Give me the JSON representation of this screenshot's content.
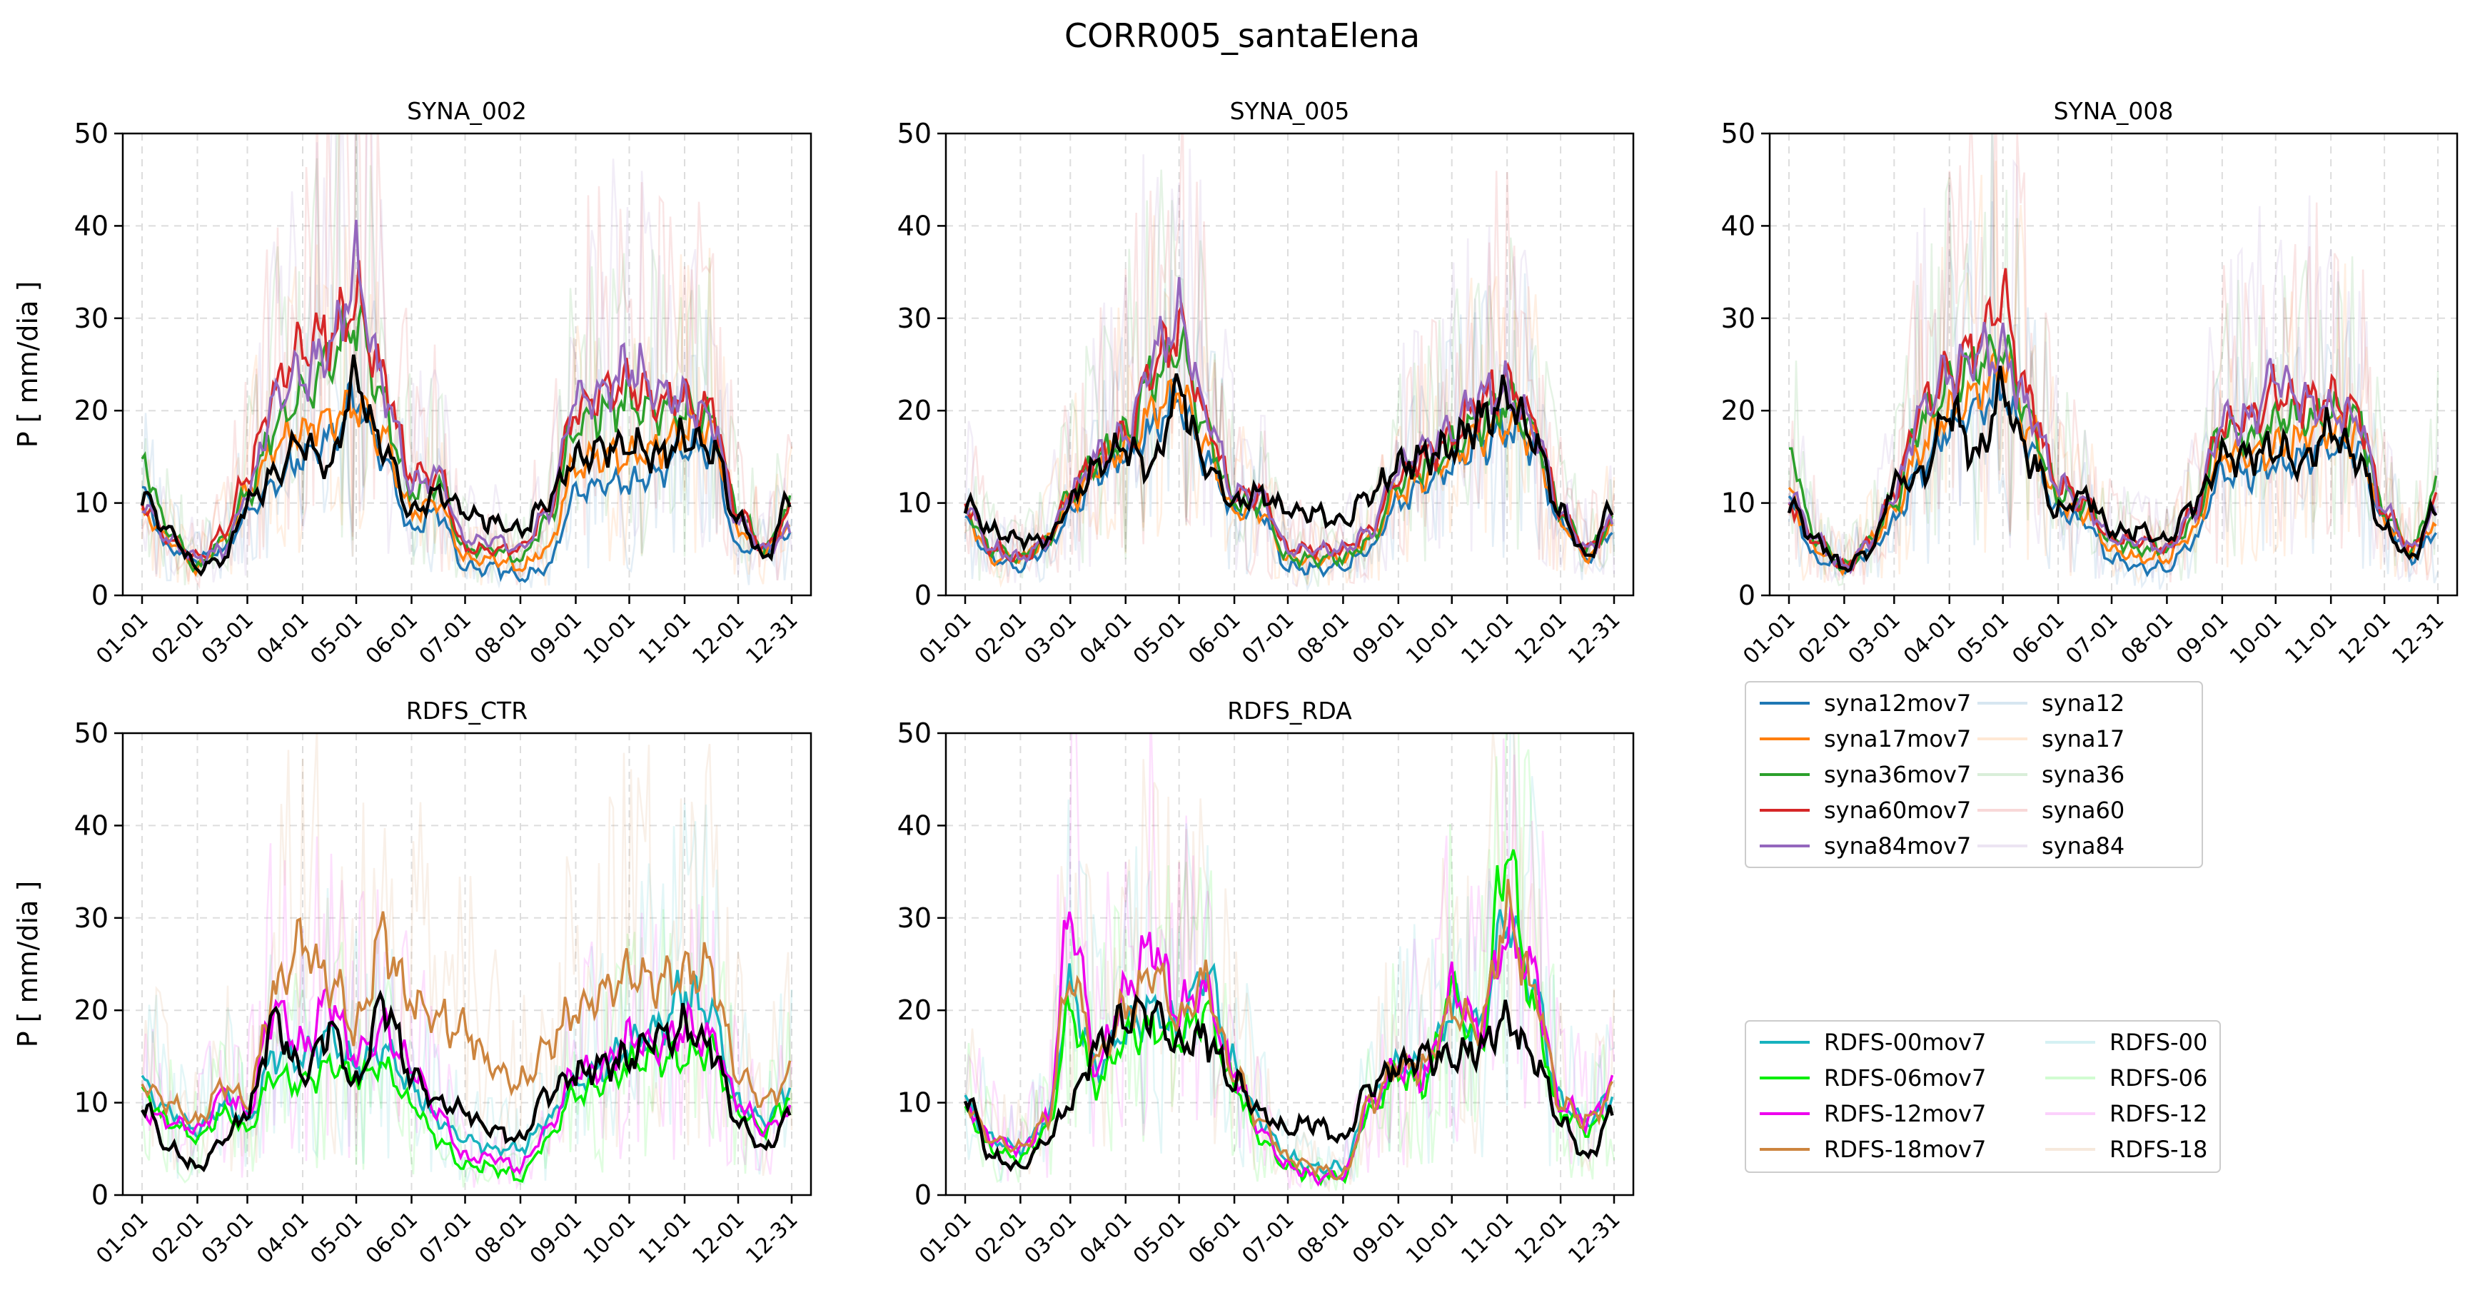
{
  "figure_title": "CORR005_santaElena",
  "colors": {
    "syna12mov7": "#1f77b4",
    "syna17mov7": "#ff7f0e",
    "syna36mov7": "#2ca02c",
    "syna60mov7": "#d62728",
    "syna84mov7": "#9467bd",
    "RDFS-00mov7": "#17b2be",
    "RDFS-06mov7": "#00ee00",
    "RDFS-12mov7": "#ee00ee",
    "RDFS-18mov7": "#cd853f",
    "observed": "#000000"
  },
  "legend_syna": {
    "left": [
      "syna12mov7",
      "syna17mov7",
      "syna36mov7",
      "syna60mov7",
      "syna84mov7"
    ],
    "right": [
      "syna12",
      "syna17",
      "syna36",
      "syna60",
      "syna84"
    ]
  },
  "legend_rdfs": {
    "left": [
      "RDFS-00mov7",
      "RDFS-06mov7",
      "RDFS-12mov7",
      "RDFS-18mov7"
    ],
    "right": [
      "RDFS-00",
      "RDFS-06",
      "RDFS-12",
      "RDFS-18"
    ]
  },
  "chart_data": [
    {
      "type": "line",
      "title": "SYNA_002",
      "ylabel": "P [ mm/dia ]",
      "ylim": [
        0,
        50
      ],
      "yticks": [
        "0",
        "10",
        "20",
        "30",
        "40",
        "50"
      ],
      "xticks": [
        "01-01",
        "02-01",
        "03-01",
        "04-01",
        "05-01",
        "06-01",
        "07-01",
        "08-01",
        "09-01",
        "10-01",
        "11-01",
        "12-01",
        "12-31"
      ],
      "grid": true,
      "x": [
        "01-01",
        "01-16",
        "02-01",
        "02-16",
        "03-01",
        "03-16",
        "04-01",
        "04-16",
        "05-01",
        "05-16",
        "06-01",
        "06-16",
        "07-01",
        "07-16",
        "08-01",
        "08-16",
        "09-01",
        "09-16",
        "10-01",
        "10-16",
        "11-01",
        "11-16",
        "12-01",
        "12-16",
        "12-31"
      ],
      "series": [
        {
          "name": "syna12mov7",
          "values": [
            11,
            5,
            4,
            5,
            9,
            12,
            15,
            17,
            21,
            15,
            7,
            9,
            3,
            3,
            2,
            3,
            11,
            12,
            12,
            13,
            16,
            16,
            5,
            5,
            7
          ]
        },
        {
          "name": "syna17mov7",
          "values": [
            9,
            6,
            3,
            6,
            11,
            16,
            18,
            19,
            21,
            17,
            9,
            10,
            4,
            4,
            3,
            5,
            14,
            15,
            15,
            16,
            18,
            18,
            7,
            5,
            8
          ]
        },
        {
          "name": "syna36mov7",
          "values": [
            15,
            7,
            3,
            6,
            11,
            18,
            22,
            25,
            30,
            21,
            11,
            12,
            5,
            5,
            4,
            8,
            18,
            20,
            21,
            20,
            20,
            19,
            9,
            5,
            10
          ]
        },
        {
          "name": "syna60mov7",
          "values": [
            10,
            6,
            4,
            7,
            13,
            22,
            27,
            28,
            32,
            24,
            13,
            13,
            5,
            5,
            5,
            9,
            20,
            22,
            23,
            21,
            21,
            20,
            9,
            5,
            9
          ]
        },
        {
          "name": "syna84mov7",
          "values": [
            10,
            6,
            4,
            5,
            11,
            21,
            24,
            27,
            35,
            23,
            12,
            13,
            6,
            6,
            5,
            9,
            21,
            22,
            25,
            22,
            21,
            19,
            8,
            5,
            7
          ]
        },
        {
          "name": "observed",
          "values": [
            11,
            7,
            3,
            4,
            10,
            13,
            17,
            14,
            23,
            16,
            9,
            11,
            9,
            8,
            7,
            10,
            15,
            16,
            16,
            15,
            17,
            16,
            8,
            4,
            11
          ]
        }
      ]
    },
    {
      "type": "line",
      "title": "SYNA_005",
      "ylabel": "",
      "ylim": [
        0,
        50
      ],
      "yticks": [
        "0",
        "10",
        "20",
        "30",
        "40",
        "50"
      ],
      "xticks": [
        "01-01",
        "02-01",
        "03-01",
        "04-01",
        "05-01",
        "06-01",
        "07-01",
        "08-01",
        "09-01",
        "10-01",
        "11-01",
        "12-01",
        "12-31"
      ],
      "grid": true,
      "x": [
        "01-01",
        "01-16",
        "02-01",
        "02-16",
        "03-01",
        "03-16",
        "04-01",
        "04-16",
        "05-01",
        "05-16",
        "06-01",
        "06-16",
        "07-01",
        "07-16",
        "08-01",
        "08-16",
        "09-01",
        "09-16",
        "10-01",
        "10-16",
        "11-01",
        "11-16",
        "12-01",
        "12-16",
        "12-31"
      ],
      "series": [
        {
          "name": "syna12mov7",
          "values": [
            8,
            4,
            3,
            5,
            9,
            13,
            15,
            18,
            21,
            15,
            9,
            9,
            3,
            3,
            3,
            5,
            10,
            12,
            14,
            16,
            18,
            16,
            8,
            4,
            7
          ]
        },
        {
          "name": "syna17mov7",
          "values": [
            9,
            4,
            4,
            6,
            10,
            14,
            16,
            20,
            22,
            16,
            9,
            9,
            4,
            4,
            4,
            6,
            11,
            13,
            15,
            17,
            19,
            17,
            8,
            4,
            8
          ]
        },
        {
          "name": "syna36mov7",
          "values": [
            9,
            5,
            4,
            6,
            11,
            15,
            17,
            24,
            27,
            18,
            10,
            10,
            4,
            4,
            4,
            6,
            12,
            14,
            16,
            19,
            21,
            18,
            9,
            5,
            8
          ]
        },
        {
          "name": "syna60mov7",
          "values": [
            10,
            5,
            4,
            6,
            11,
            15,
            17,
            25,
            29,
            19,
            11,
            11,
            5,
            5,
            5,
            7,
            13,
            15,
            17,
            21,
            23,
            19,
            9,
            5,
            8
          ]
        },
        {
          "name": "syna84mov7",
          "values": [
            10,
            5,
            4,
            6,
            11,
            15,
            17,
            26,
            30,
            20,
            11,
            11,
            5,
            5,
            5,
            7,
            14,
            16,
            18,
            22,
            22,
            18,
            9,
            5,
            8
          ]
        },
        {
          "name": "observed",
          "values": [
            10,
            7,
            6,
            6,
            10,
            14,
            16,
            14,
            22,
            14,
            10,
            11,
            9,
            9,
            8,
            11,
            14,
            15,
            16,
            19,
            21,
            17,
            9,
            4,
            10
          ]
        }
      ]
    },
    {
      "type": "line",
      "title": "SYNA_008",
      "ylabel": "",
      "ylim": [
        0,
        50
      ],
      "yticks": [
        "0",
        "10",
        "20",
        "30",
        "40",
        "50"
      ],
      "xticks": [
        "01-01",
        "02-01",
        "03-01",
        "04-01",
        "05-01",
        "06-01",
        "07-01",
        "08-01",
        "09-01",
        "10-01",
        "11-01",
        "12-01",
        "12-31"
      ],
      "grid": true,
      "x": [
        "01-01",
        "01-16",
        "02-01",
        "02-16",
        "03-01",
        "03-16",
        "04-01",
        "04-16",
        "05-01",
        "05-16",
        "06-01",
        "06-16",
        "07-01",
        "07-16",
        "08-01",
        "08-16",
        "09-01",
        "09-16",
        "10-01",
        "10-16",
        "11-01",
        "11-16",
        "12-01",
        "12-16",
        "12-31"
      ],
      "series": [
        {
          "name": "syna12mov7",
          "values": [
            10,
            4,
            3,
            5,
            8,
            14,
            18,
            20,
            22,
            16,
            9,
            8,
            4,
            3,
            3,
            6,
            13,
            13,
            14,
            15,
            16,
            16,
            8,
            4,
            7
          ]
        },
        {
          "name": "syna17mov7",
          "values": [
            11,
            5,
            3,
            6,
            9,
            16,
            20,
            22,
            25,
            18,
            10,
            9,
            5,
            4,
            4,
            7,
            15,
            15,
            16,
            17,
            18,
            17,
            8,
            5,
            8
          ]
        },
        {
          "name": "syna36mov7",
          "values": [
            16,
            6,
            3,
            6,
            10,
            19,
            23,
            25,
            27,
            19,
            11,
            10,
            6,
            5,
            5,
            8,
            18,
            17,
            19,
            19,
            20,
            19,
            9,
            5,
            12
          ]
        },
        {
          "name": "syna60mov7",
          "values": [
            10,
            6,
            3,
            6,
            11,
            20,
            24,
            27,
            32,
            21,
            12,
            10,
            6,
            6,
            5,
            9,
            19,
            19,
            22,
            21,
            21,
            20,
            9,
            5,
            10
          ]
        },
        {
          "name": "syna84mov7",
          "values": [
            11,
            6,
            3,
            6,
            11,
            20,
            24,
            26,
            26,
            20,
            12,
            10,
            6,
            6,
            5,
            9,
            19,
            19,
            24,
            21,
            20,
            19,
            9,
            5,
            9
          ]
        },
        {
          "name": "observed",
          "values": [
            10,
            6,
            3,
            5,
            12,
            13,
            20,
            15,
            22,
            15,
            9,
            11,
            7,
            7,
            6,
            10,
            15,
            15,
            16,
            14,
            18,
            15,
            7,
            4,
            10
          ]
        }
      ]
    },
    {
      "type": "line",
      "title": "RDFS_CTR",
      "ylabel": "P [ mm/dia ]",
      "ylim": [
        0,
        50
      ],
      "yticks": [
        "0",
        "10",
        "20",
        "30",
        "40",
        "50"
      ],
      "xticks": [
        "01-01",
        "02-01",
        "03-01",
        "04-01",
        "05-01",
        "06-01",
        "07-01",
        "08-01",
        "09-01",
        "10-01",
        "11-01",
        "12-01",
        "12-31"
      ],
      "grid": true,
      "x": [
        "01-01",
        "01-16",
        "02-01",
        "02-16",
        "03-01",
        "03-16",
        "04-01",
        "04-16",
        "05-01",
        "05-16",
        "06-01",
        "06-16",
        "07-01",
        "07-16",
        "08-01",
        "08-16",
        "09-01",
        "09-16",
        "10-01",
        "10-16",
        "11-01",
        "11-16",
        "12-01",
        "12-16",
        "12-31"
      ],
      "series": [
        {
          "name": "RDFS-00mov7",
          "values": [
            12,
            9,
            7,
            10,
            8,
            15,
            15,
            17,
            14,
            16,
            12,
            8,
            6,
            5,
            5,
            8,
            12,
            14,
            16,
            18,
            22,
            20,
            10,
            8,
            12
          ]
        },
        {
          "name": "RDFS-06mov7",
          "values": [
            11,
            8,
            6,
            9,
            7,
            13,
            12,
            14,
            13,
            14,
            10,
            6,
            3,
            3,
            2,
            6,
            11,
            12,
            14,
            15,
            15,
            16,
            9,
            7,
            11
          ]
        },
        {
          "name": "RDFS-12mov7",
          "values": [
            9,
            8,
            7,
            11,
            9,
            20,
            16,
            21,
            15,
            18,
            14,
            9,
            4,
            4,
            3,
            7,
            13,
            14,
            17,
            16,
            18,
            17,
            10,
            7,
            9
          ]
        },
        {
          "name": "RDFS-18mov7",
          "values": [
            12,
            10,
            8,
            12,
            10,
            22,
            27,
            23,
            18,
            28,
            21,
            19,
            18,
            14,
            12,
            16,
            20,
            22,
            24,
            23,
            24,
            24,
            13,
            10,
            13
          ]
        },
        {
          "name": "observed",
          "values": [
            10,
            5,
            3,
            6,
            9,
            19,
            13,
            18,
            12,
            21,
            13,
            10,
            9,
            7,
            6,
            11,
            13,
            14,
            15,
            17,
            18,
            16,
            8,
            5,
            9
          ]
        }
      ]
    },
    {
      "type": "line",
      "title": "RDFS_RDA",
      "ylabel": "",
      "ylim": [
        0,
        50
      ],
      "yticks": [
        "0",
        "10",
        "20",
        "30",
        "40",
        "50"
      ],
      "xticks": [
        "01-01",
        "02-01",
        "03-01",
        "04-01",
        "05-01",
        "06-01",
        "07-01",
        "08-01",
        "09-01",
        "10-01",
        "11-01",
        "12-01",
        "12-31"
      ],
      "grid": true,
      "x": [
        "01-01",
        "01-16",
        "02-01",
        "02-16",
        "03-01",
        "03-16",
        "04-01",
        "04-16",
        "05-01",
        "05-16",
        "06-01",
        "06-16",
        "07-01",
        "07-16",
        "08-01",
        "08-16",
        "09-01",
        "09-16",
        "10-01",
        "10-16",
        "11-01",
        "11-16",
        "12-01",
        "12-16",
        "12-31"
      ],
      "series": [
        {
          "name": "RDFS-00mov7",
          "values": [
            10,
            6,
            5,
            8,
            22,
            14,
            18,
            20,
            18,
            24,
            14,
            8,
            4,
            3,
            3,
            10,
            14,
            14,
            20,
            18,
            30,
            22,
            10,
            8,
            11
          ]
        },
        {
          "name": "RDFS-06mov7",
          "values": [
            9,
            5,
            4,
            7,
            20,
            12,
            17,
            18,
            17,
            20,
            12,
            6,
            3,
            2,
            2,
            9,
            13,
            12,
            22,
            16,
            37,
            20,
            9,
            7,
            10
          ]
        },
        {
          "name": "RDFS-12mov7",
          "values": [
            10,
            6,
            5,
            8,
            31,
            14,
            22,
            27,
            20,
            22,
            13,
            7,
            3,
            2,
            2,
            10,
            14,
            13,
            22,
            18,
            28,
            24,
            10,
            8,
            12
          ]
        },
        {
          "name": "RDFS-18mov7",
          "values": [
            10,
            6,
            5,
            8,
            24,
            15,
            20,
            24,
            19,
            23,
            13,
            8,
            4,
            3,
            2,
            10,
            14,
            14,
            20,
            18,
            30,
            22,
            10,
            8,
            11
          ]
        },
        {
          "name": "observed",
          "values": [
            11,
            4,
            3,
            6,
            10,
            16,
            19,
            20,
            16,
            17,
            12,
            9,
            7,
            8,
            6,
            12,
            14,
            15,
            15,
            16,
            19,
            15,
            8,
            4,
            9
          ]
        }
      ]
    }
  ]
}
